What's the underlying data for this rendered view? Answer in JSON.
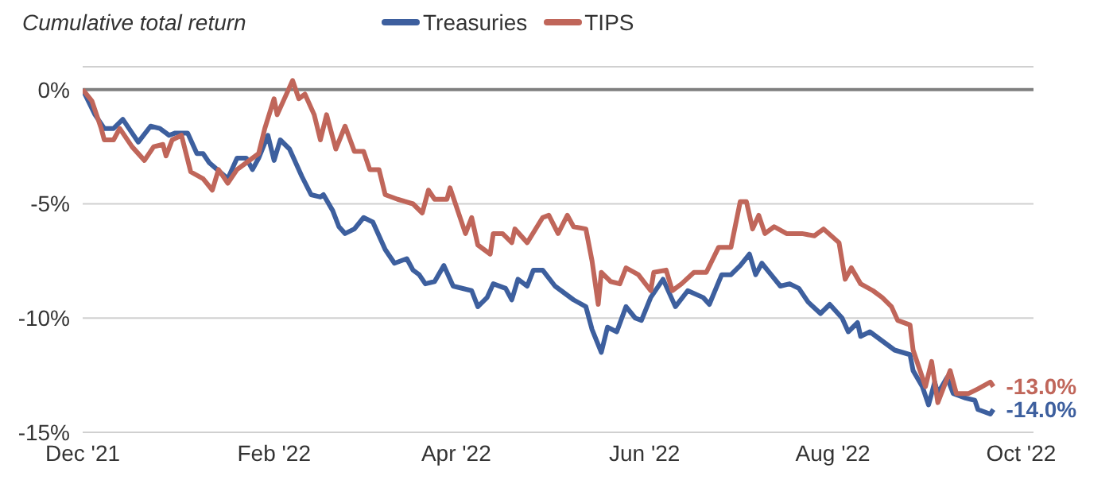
{
  "chart_data": {
    "type": "line",
    "ylabel": "Cumulative total return",
    "xlim": [
      "2021-12-01",
      "2022-10-05"
    ],
    "xticks": [
      {
        "value": "2021-12-01",
        "label": "Dec '21"
      },
      {
        "value": "2022-02-01",
        "label": "Feb '22"
      },
      {
        "value": "2022-04-01",
        "label": "Apr '22"
      },
      {
        "value": "2022-06-01",
        "label": "Jun '22"
      },
      {
        "value": "2022-08-01",
        "label": "Aug '22"
      },
      {
        "value": "2022-10-01",
        "label": "Oct '22"
      }
    ],
    "ylim": [
      -15,
      1
    ],
    "yticks": [
      {
        "value": -15,
        "label": "-15%"
      },
      {
        "value": -10,
        "label": "-10%"
      },
      {
        "value": -5,
        "label": "-5%"
      },
      {
        "value": 0,
        "label": "0%"
      }
    ],
    "grid": "y",
    "legend": "top",
    "line_style": "solid",
    "marker": "none",
    "ref_lines": [
      {
        "axis": "y",
        "value": 0,
        "color": "#7f7f7f"
      }
    ],
    "series": [
      {
        "name": "Treasuries",
        "color": "#3d5f9e",
        "x": [
          "2021-12-01",
          "2021-12-05",
          "2021-12-08",
          "2021-12-11",
          "2021-12-14",
          "2021-12-17",
          "2021-12-19",
          "2021-12-23",
          "2021-12-26",
          "2021-12-29",
          "2021-12-31",
          "2022-01-04",
          "2022-01-07",
          "2022-01-09",
          "2022-01-11",
          "2022-01-17",
          "2022-01-20",
          "2022-01-23",
          "2022-01-25",
          "2022-01-27",
          "2022-01-30",
          "2022-02-01",
          "2022-02-03",
          "2022-02-06",
          "2022-02-10",
          "2022-02-13",
          "2022-02-16",
          "2022-02-17",
          "2022-02-20",
          "2022-02-22",
          "2022-02-24",
          "2022-02-27",
          "2022-03-02",
          "2022-03-05",
          "2022-03-09",
          "2022-03-12",
          "2022-03-16",
          "2022-03-18",
          "2022-03-20",
          "2022-03-22",
          "2022-03-25",
          "2022-03-28",
          "2022-03-31",
          "2022-04-06",
          "2022-04-08",
          "2022-04-11",
          "2022-04-13",
          "2022-04-17",
          "2022-04-19",
          "2022-04-21",
          "2022-04-24",
          "2022-04-26",
          "2022-04-29",
          "2022-05-03",
          "2022-05-09",
          "2022-05-13",
          "2022-05-15",
          "2022-05-18",
          "2022-05-20",
          "2022-05-23",
          "2022-05-26",
          "2022-05-29",
          "2022-05-31",
          "2022-06-03",
          "2022-06-07",
          "2022-06-11",
          "2022-06-15",
          "2022-06-20",
          "2022-06-22",
          "2022-06-26",
          "2022-06-29",
          "2022-07-02",
          "2022-07-05",
          "2022-07-07",
          "2022-07-09",
          "2022-07-12",
          "2022-07-15",
          "2022-07-18",
          "2022-07-21",
          "2022-07-24",
          "2022-07-28",
          "2022-07-31",
          "2022-08-04",
          "2022-08-06",
          "2022-08-09",
          "2022-08-10",
          "2022-08-13",
          "2022-08-17",
          "2022-08-21",
          "2022-08-26",
          "2022-08-27",
          "2022-08-30",
          "2022-09-01",
          "2022-09-03",
          "2022-09-04",
          "2022-09-07",
          "2022-09-09",
          "2022-09-13",
          "2022-09-16",
          "2022-09-17",
          "2022-09-21",
          "2022-09-22"
        ],
        "values": [
          0,
          -1.1,
          -1.7,
          -1.7,
          -1.3,
          -1.9,
          -2.3,
          -1.6,
          -1.7,
          -2.0,
          -1.9,
          -1.9,
          -2.8,
          -2.8,
          -3.2,
          -3.9,
          -3.0,
          -3.0,
          -3.5,
          -3.0,
          -2.0,
          -3.1,
          -2.2,
          -2.6,
          -3.8,
          -4.6,
          -4.7,
          -4.6,
          -5.3,
          -6.0,
          -6.3,
          -6.1,
          -5.6,
          -5.8,
          -7.0,
          -7.6,
          -7.4,
          -7.9,
          -8.1,
          -8.5,
          -8.4,
          -7.7,
          -8.6,
          -8.8,
          -9.5,
          -9.1,
          -8.5,
          -8.7,
          -9.2,
          -8.3,
          -8.6,
          -7.9,
          -7.9,
          -8.6,
          -9.2,
          -9.5,
          -10.5,
          -11.5,
          -10.4,
          -10.6,
          -9.5,
          -10.0,
          -10.1,
          -9.1,
          -8.3,
          -9.5,
          -8.8,
          -9.1,
          -9.4,
          -8.1,
          -8.1,
          -7.7,
          -7.2,
          -8.1,
          -7.6,
          -8.1,
          -8.6,
          -8.5,
          -8.7,
          -9.3,
          -9.8,
          -9.4,
          -10.0,
          -10.6,
          -10.2,
          -10.8,
          -10.6,
          -11.0,
          -11.4,
          -11.6,
          -12.3,
          -13.0,
          -13.8,
          -12.8,
          -13.3,
          -12.6,
          -13.3,
          -13.5,
          -13.6,
          -14.0,
          -14.2,
          -14.0
        ],
        "value_labels": [
          null,
          null,
          null,
          null,
          null,
          null,
          null,
          null,
          null,
          null,
          null,
          null,
          null,
          null,
          null,
          null,
          null,
          null,
          null,
          null,
          null,
          null,
          null,
          null,
          null,
          null,
          null,
          null,
          null,
          null,
          null,
          null,
          null,
          null,
          null,
          null,
          null,
          null,
          null,
          null,
          null,
          null,
          null,
          null,
          null,
          null,
          null,
          null,
          null,
          null,
          null,
          null,
          null,
          null,
          null,
          null,
          null,
          null,
          null,
          null,
          null,
          null,
          null,
          null,
          null,
          null,
          null,
          null,
          null,
          null,
          null,
          null,
          null,
          null,
          null,
          null,
          null,
          null,
          null,
          null,
          null,
          null,
          null,
          null,
          null,
          null,
          null,
          null,
          null,
          null,
          null,
          null,
          null,
          null,
          null,
          null,
          null,
          null,
          null,
          null,
          null,
          "-14.0%"
        ]
      },
      {
        "name": "TIPS",
        "color": "#c0665a",
        "x": [
          "2021-12-01",
          "2021-12-04",
          "2021-12-07",
          "2021-12-08",
          "2021-12-11",
          "2021-12-13",
          "2021-12-17",
          "2021-12-21",
          "2021-12-24",
          "2021-12-27",
          "2021-12-28",
          "2021-12-30",
          "2022-01-02",
          "2022-01-05",
          "2022-01-09",
          "2022-01-12",
          "2022-01-14",
          "2022-01-17",
          "2022-01-20",
          "2022-01-23",
          "2022-01-27",
          "2022-01-29",
          "2022-02-01",
          "2022-02-02",
          "2022-02-04",
          "2022-02-07",
          "2022-02-09",
          "2022-02-11",
          "2022-02-14",
          "2022-02-16",
          "2022-02-18",
          "2022-02-21",
          "2022-02-24",
          "2022-02-27",
          "2022-03-02",
          "2022-03-04",
          "2022-03-07",
          "2022-03-09",
          "2022-03-13",
          "2022-03-18",
          "2022-03-21",
          "2022-03-23",
          "2022-03-25",
          "2022-03-29",
          "2022-03-30",
          "2022-04-04",
          "2022-04-06",
          "2022-04-08",
          "2022-04-12",
          "2022-04-13",
          "2022-04-16",
          "2022-04-19",
          "2022-04-20",
          "2022-04-24",
          "2022-04-29",
          "2022-05-01",
          "2022-05-04",
          "2022-05-07",
          "2022-05-09",
          "2022-05-13",
          "2022-05-15",
          "2022-05-17",
          "2022-05-18",
          "2022-05-21",
          "2022-05-24",
          "2022-05-26",
          "2022-05-30",
          "2022-06-03",
          "2022-06-04",
          "2022-06-08",
          "2022-06-10",
          "2022-06-13",
          "2022-06-17",
          "2022-06-21",
          "2022-06-25",
          "2022-06-29",
          "2022-07-02",
          "2022-07-04",
          "2022-07-06",
          "2022-07-08",
          "2022-07-10",
          "2022-07-13",
          "2022-07-17",
          "2022-07-22",
          "2022-07-26",
          "2022-07-29",
          "2022-08-03",
          "2022-08-05",
          "2022-08-07",
          "2022-08-10",
          "2022-08-14",
          "2022-08-17",
          "2022-08-20",
          "2022-08-22",
          "2022-08-26",
          "2022-08-27",
          "2022-08-31",
          "2022-09-02",
          "2022-09-04",
          "2022-09-08",
          "2022-09-10",
          "2022-09-14",
          "2022-09-17",
          "2022-09-21",
          "2022-09-22"
        ],
        "values": [
          0,
          -0.5,
          -1.7,
          -2.2,
          -2.2,
          -1.7,
          -2.5,
          -3.1,
          -2.5,
          -2.4,
          -2.9,
          -2.2,
          -2.0,
          -3.6,
          -3.9,
          -4.4,
          -3.5,
          -4.1,
          -3.5,
          -3.2,
          -2.8,
          -1.7,
          -0.4,
          -1.1,
          -0.5,
          0.4,
          -0.4,
          -0.2,
          -1.1,
          -2.2,
          -1.1,
          -2.6,
          -1.6,
          -2.7,
          -2.7,
          -3.5,
          -3.5,
          -4.6,
          -4.8,
          -5.0,
          -5.4,
          -4.4,
          -4.8,
          -4.8,
          -4.3,
          -6.3,
          -5.6,
          -6.8,
          -7.2,
          -6.3,
          -6.3,
          -6.7,
          -6.1,
          -6.7,
          -5.6,
          -5.5,
          -6.3,
          -5.5,
          -6.0,
          -6.1,
          -7.5,
          -9.4,
          -8.0,
          -8.4,
          -8.5,
          -7.8,
          -8.1,
          -8.8,
          -8.0,
          -7.9,
          -8.8,
          -8.5,
          -8.0,
          -8.0,
          -6.9,
          -6.9,
          -4.9,
          -4.9,
          -6.1,
          -5.5,
          -6.3,
          -6.0,
          -6.3,
          -6.3,
          -6.4,
          -6.1,
          -6.7,
          -8.3,
          -7.8,
          -8.5,
          -8.8,
          -9.1,
          -9.5,
          -10.1,
          -10.3,
          -11.4,
          -13.0,
          -11.9,
          -13.7,
          -12.3,
          -13.3,
          -13.3,
          -13.1,
          -12.8,
          -13.0
        ],
        "value_labels": [
          null,
          null,
          null,
          null,
          null,
          null,
          null,
          null,
          null,
          null,
          null,
          null,
          null,
          null,
          null,
          null,
          null,
          null,
          null,
          null,
          null,
          null,
          null,
          null,
          null,
          null,
          null,
          null,
          null,
          null,
          null,
          null,
          null,
          null,
          null,
          null,
          null,
          null,
          null,
          null,
          null,
          null,
          null,
          null,
          null,
          null,
          null,
          null,
          null,
          null,
          null,
          null,
          null,
          null,
          null,
          null,
          null,
          null,
          null,
          null,
          null,
          null,
          null,
          null,
          null,
          null,
          null,
          null,
          null,
          null,
          null,
          null,
          null,
          null,
          null,
          null,
          null,
          null,
          null,
          null,
          null,
          null,
          null,
          null,
          null,
          null,
          null,
          null,
          null,
          null,
          null,
          null,
          null,
          null,
          null,
          null,
          null,
          null,
          null,
          null,
          null,
          null,
          null,
          null,
          "-13.0%"
        ]
      }
    ]
  }
}
